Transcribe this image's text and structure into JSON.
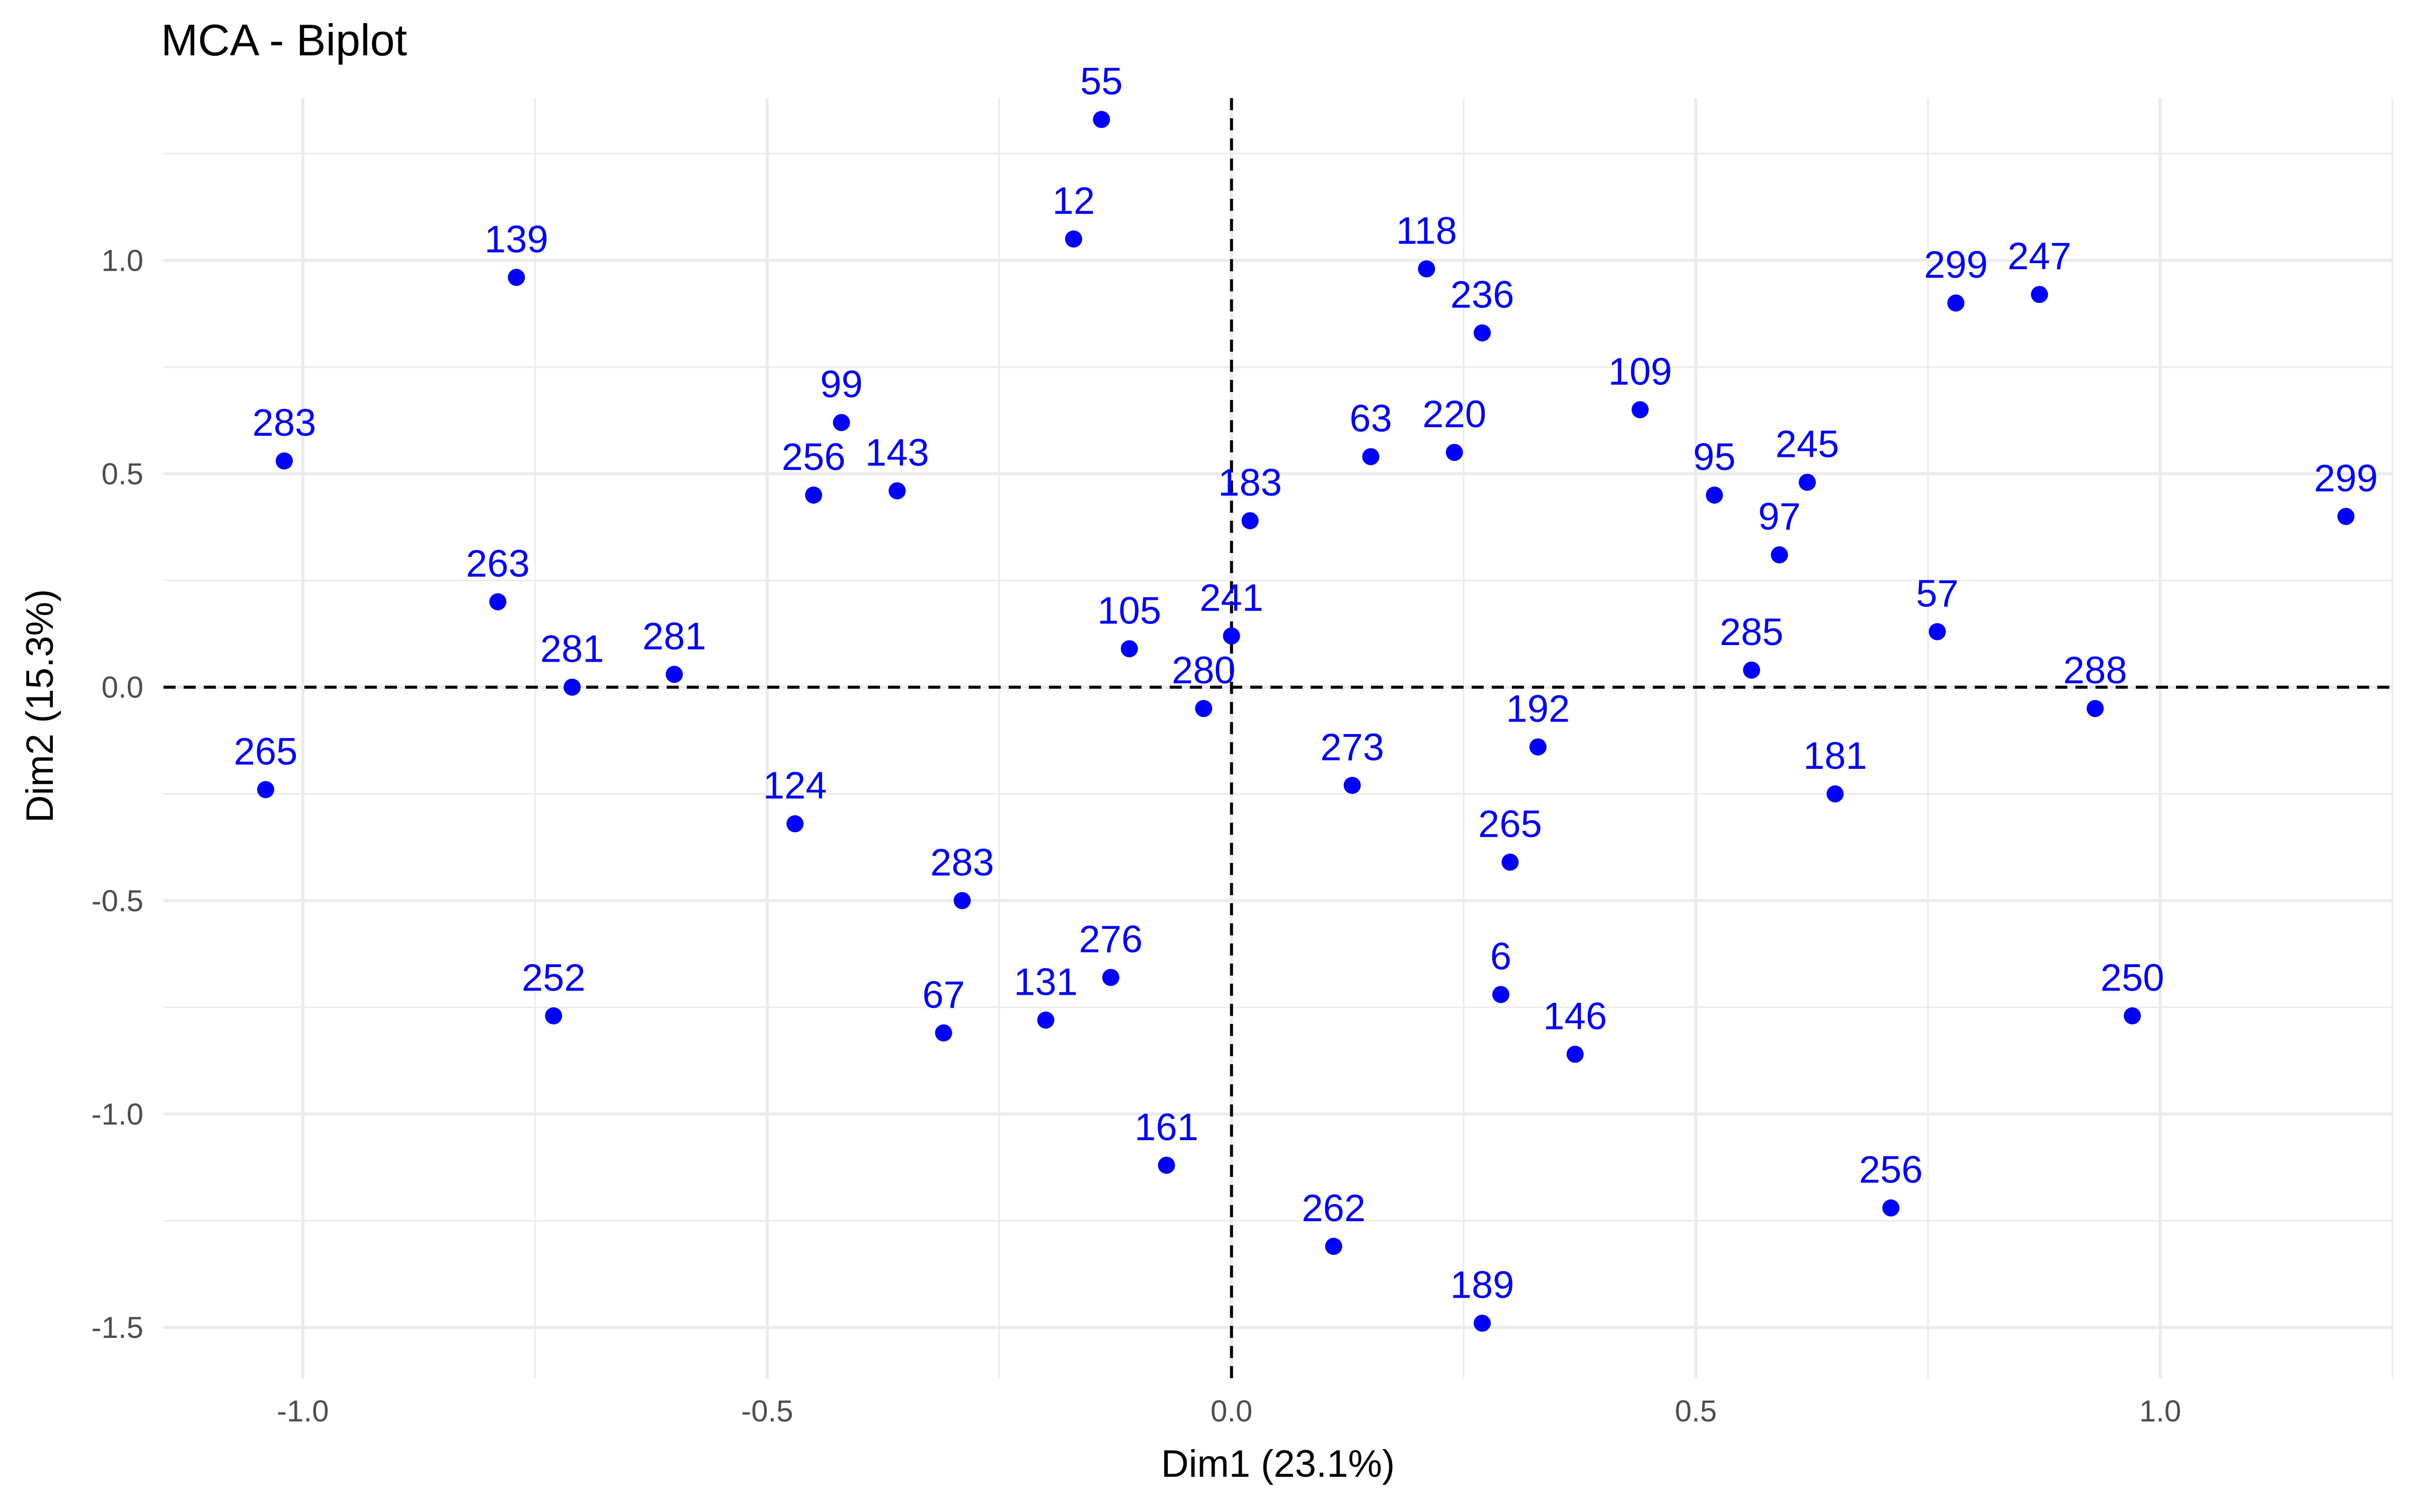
{
  "chart_data": {
    "type": "scatter",
    "title": "MCA - Biplot",
    "xlabel": "Dim1 (23.1%)",
    "ylabel": "Dim2 (15.3%)",
    "xlim": [
      -1.15,
      1.25
    ],
    "ylim": [
      -1.62,
      1.38
    ],
    "x_ticks": [
      {
        "value": -1.0,
        "label": "-1.0"
      },
      {
        "value": -0.5,
        "label": "-0.5"
      },
      {
        "value": 0.0,
        "label": "0.0"
      },
      {
        "value": 0.5,
        "label": "0.5"
      },
      {
        "value": 1.0,
        "label": "1.0"
      }
    ],
    "y_ticks": [
      {
        "value": -1.5,
        "label": "-1.5"
      },
      {
        "value": -1.0,
        "label": "-1.0"
      },
      {
        "value": -0.5,
        "label": "-0.5"
      },
      {
        "value": 0.0,
        "label": "0.0"
      },
      {
        "value": 0.5,
        "label": "0.5"
      },
      {
        "value": 1.0,
        "label": "1.0"
      }
    ],
    "x_minor_ticks": [
      -0.75,
      -0.25,
      0.25,
      0.75,
      1.25
    ],
    "y_minor_ticks": [
      -1.25,
      -0.75,
      -0.25,
      0.25,
      0.75,
      1.25
    ],
    "grid": true,
    "reference_lines": {
      "x": 0,
      "y": 0,
      "style": "dashed"
    },
    "point_color": "#0000ff",
    "axis_text_color": "#4d4d4d",
    "grid_color": "#ebebeb",
    "points": [
      {
        "label": "55",
        "x": -0.14,
        "y": 1.33
      },
      {
        "label": "12",
        "x": -0.17,
        "y": 1.05
      },
      {
        "label": "139",
        "x": -0.77,
        "y": 0.96
      },
      {
        "label": "118",
        "x": 0.21,
        "y": 0.98
      },
      {
        "label": "236",
        "x": 0.27,
        "y": 0.83
      },
      {
        "label": "299",
        "x": 0.78,
        "y": 0.9
      },
      {
        "label": "247",
        "x": 0.87,
        "y": 0.92
      },
      {
        "label": "109",
        "x": 0.44,
        "y": 0.65
      },
      {
        "label": "99",
        "x": -0.42,
        "y": 0.62
      },
      {
        "label": "283",
        "x": -1.02,
        "y": 0.53
      },
      {
        "label": "256",
        "x": -0.45,
        "y": 0.45
      },
      {
        "label": "143",
        "x": -0.36,
        "y": 0.46
      },
      {
        "label": "63",
        "x": 0.15,
        "y": 0.54
      },
      {
        "label": "220",
        "x": 0.24,
        "y": 0.55
      },
      {
        "label": "95",
        "x": 0.52,
        "y": 0.45
      },
      {
        "label": "245",
        "x": 0.62,
        "y": 0.48
      },
      {
        "label": "299",
        "x": 1.2,
        "y": 0.4
      },
      {
        "label": "183",
        "x": 0.02,
        "y": 0.39
      },
      {
        "label": "97",
        "x": 0.59,
        "y": 0.31
      },
      {
        "label": "263",
        "x": -0.79,
        "y": 0.2
      },
      {
        "label": "57",
        "x": 0.76,
        "y": 0.13
      },
      {
        "label": "105",
        "x": -0.11,
        "y": 0.09
      },
      {
        "label": "241",
        "x": 0.0,
        "y": 0.12
      },
      {
        "label": "281",
        "x": -0.71,
        "y": 0.0
      },
      {
        "label": "281",
        "x": -0.6,
        "y": 0.03
      },
      {
        "label": "285",
        "x": 0.56,
        "y": 0.04
      },
      {
        "label": "280",
        "x": -0.03,
        "y": -0.05
      },
      {
        "label": "288",
        "x": 0.93,
        "y": -0.05
      },
      {
        "label": "192",
        "x": 0.33,
        "y": -0.14
      },
      {
        "label": "273",
        "x": 0.13,
        "y": -0.23
      },
      {
        "label": "181",
        "x": 0.65,
        "y": -0.25
      },
      {
        "label": "265",
        "x": -1.04,
        "y": -0.24
      },
      {
        "label": "124",
        "x": -0.47,
        "y": -0.32
      },
      {
        "label": "265",
        "x": 0.3,
        "y": -0.41
      },
      {
        "label": "283",
        "x": -0.29,
        "y": -0.5
      },
      {
        "label": "276",
        "x": -0.13,
        "y": -0.68
      },
      {
        "label": "6",
        "x": 0.29,
        "y": -0.72
      },
      {
        "label": "131",
        "x": -0.2,
        "y": -0.78
      },
      {
        "label": "67",
        "x": -0.31,
        "y": -0.81
      },
      {
        "label": "252",
        "x": -0.73,
        "y": -0.77
      },
      {
        "label": "250",
        "x": 0.97,
        "y": -0.77
      },
      {
        "label": "146",
        "x": 0.37,
        "y": -0.86
      },
      {
        "label": "161",
        "x": -0.07,
        "y": -1.12
      },
      {
        "label": "262",
        "x": 0.11,
        "y": -1.31
      },
      {
        "label": "256",
        "x": 0.71,
        "y": -1.22
      },
      {
        "label": "189",
        "x": 0.27,
        "y": -1.49
      }
    ]
  }
}
